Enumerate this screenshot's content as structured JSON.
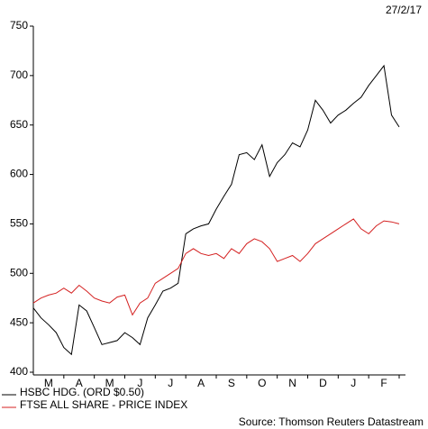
{
  "chart_data": {
    "type": "line",
    "date": "27/2/17",
    "months": [
      "M",
      "A",
      "M",
      "J",
      "J",
      "A",
      "S",
      "O",
      "N",
      "D",
      "J",
      "F"
    ],
    "ylim": [
      400,
      750
    ],
    "yticks": [
      400,
      450,
      500,
      550,
      600,
      650,
      700,
      750
    ],
    "series": [
      {
        "name": "HSBC HDG. (ORD $0.50)",
        "color": "#000000",
        "values": [
          465,
          455,
          448,
          440,
          425,
          418,
          468,
          462,
          445,
          428,
          430,
          432,
          440,
          435,
          428,
          455,
          468,
          482,
          485,
          490,
          540,
          545,
          548,
          550,
          565,
          578,
          590,
          620,
          622,
          615,
          630,
          598,
          612,
          620,
          632,
          628,
          645,
          675,
          665,
          652,
          660,
          665,
          672,
          678,
          690,
          700,
          710,
          660,
          648
        ]
      },
      {
        "name": "FTSE ALL SHARE - PRICE INDEX",
        "color": "#d42020",
        "values": [
          470,
          475,
          478,
          480,
          485,
          480,
          488,
          482,
          475,
          472,
          470,
          476,
          478,
          458,
          470,
          475,
          490,
          495,
          500,
          505,
          520,
          525,
          520,
          518,
          520,
          515,
          525,
          520,
          530,
          535,
          532,
          525,
          512,
          515,
          518,
          512,
          520,
          530,
          535,
          540,
          545,
          550,
          555,
          545,
          540,
          548,
          553,
          552,
          550
        ]
      }
    ],
    "source": "Source: Thomson Reuters Datastream"
  }
}
